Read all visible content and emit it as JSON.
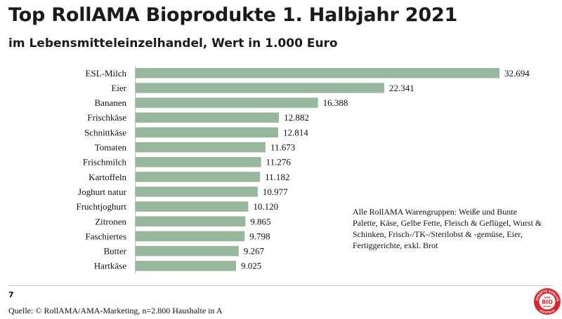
{
  "header": {
    "title": "Top RollAMA Bioprodukte 1. Halbjahr 2021",
    "subtitle": "im Lebensmitteleinzelhandel, Wert in 1.000 Euro"
  },
  "chart_data": {
    "type": "bar",
    "orientation": "horizontal",
    "categories": [
      "ESL-Milch",
      "Eier",
      "Bananen",
      "Frischkäse",
      "Schnittkäse",
      "Tomaten",
      "Frischmilch",
      "Kartoffeln",
      "Joghurt natur",
      "Fruchtjoghurt",
      "Zitronen",
      "Faschiertes",
      "Butter",
      "Hartkäse"
    ],
    "values": [
      32694,
      22341,
      16388,
      12882,
      12814,
      11673,
      11276,
      11182,
      10977,
      10120,
      9865,
      9798,
      9267,
      9025
    ],
    "value_labels": [
      "32.694",
      "22.341",
      "16.388",
      "12.882",
      "12.814",
      "11.673",
      "11.276",
      "11.182",
      "10.977",
      "10.120",
      "9.865",
      "9.798",
      "9.267",
      "9.025"
    ],
    "xlim": [
      0,
      32694
    ],
    "grid": false,
    "bar_color": "#98b89e"
  },
  "note": "Alle RollAMA Warengruppen: Weiße und Bunte Palette, Käse, Gelbe Fette, Fleisch & Geflügel, Wurst & Schinken, Frisch-/TK-/Sterilobst & -gemüse,  Eier, Fertiggerichte, exkl. Brot",
  "footer": {
    "page_number": "7",
    "source": "Quelle: © RollAMA/AMA-Marketing, n=2.800 Haushalte in A"
  },
  "logo": {
    "top_text": "GEPRÜFTE QUALITÄT",
    "ama": "AMA",
    "bio": "BIO",
    "siegel": "SIEGEL",
    "bottom_text": "AUSTRIA",
    "color": "#d9262c"
  }
}
